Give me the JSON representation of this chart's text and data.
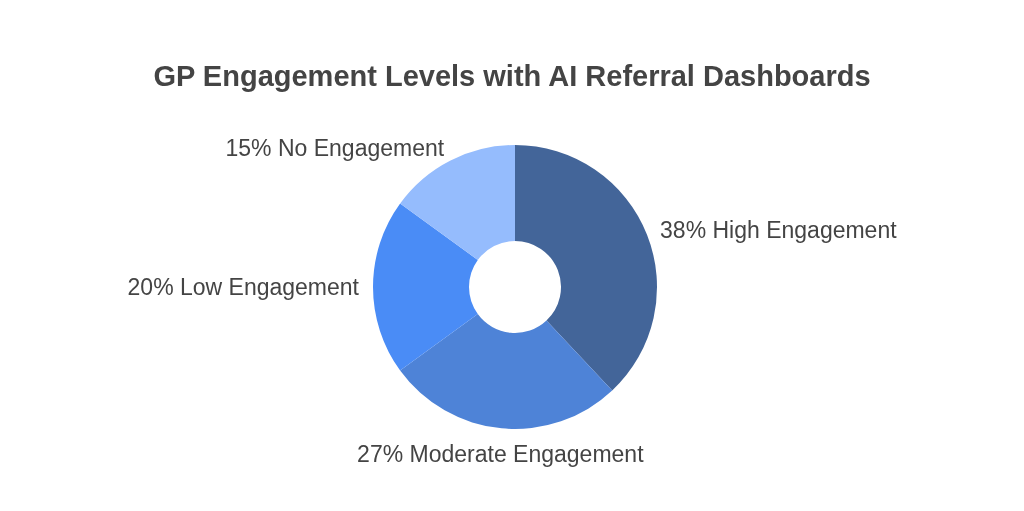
{
  "chart_data": {
    "type": "donut",
    "title": "GP Engagement Levels with AI Referral Dashboards",
    "categories": [
      "High Engagement",
      "Moderate Engagement",
      "Low Engagement",
      "No Engagement"
    ],
    "values": [
      38,
      27,
      20,
      15
    ],
    "value_labels": [
      "38%",
      "27%",
      "20%",
      "15%"
    ],
    "colors": [
      "#436599",
      "#4e83d7",
      "#4a8cf6",
      "#95bcfd"
    ]
  }
}
